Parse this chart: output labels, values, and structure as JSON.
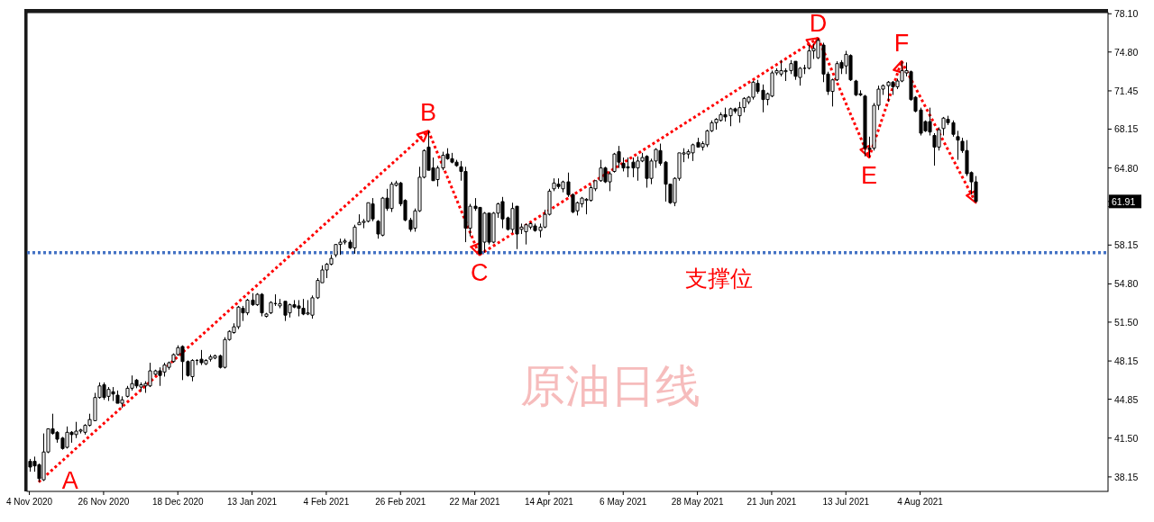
{
  "chart_data": {
    "type": "candlestick",
    "title": "原油日线",
    "categories": [
      "4 Nov 2020",
      null,
      null,
      null,
      null,
      null,
      null,
      null,
      null,
      null,
      null,
      null,
      null,
      null,
      null,
      null,
      "26 Nov 2020",
      null,
      null,
      null,
      null,
      null,
      null,
      null,
      null,
      null,
      null,
      null,
      null,
      null,
      null,
      null,
      "18 Dec 2020",
      null,
      null,
      null,
      null,
      null,
      null,
      null,
      null,
      null,
      null,
      null,
      null,
      null,
      null,
      null,
      "13 Jan 2021",
      null,
      null,
      null,
      null,
      null,
      null,
      null,
      null,
      null,
      null,
      null,
      null,
      null,
      null,
      null,
      "4 Feb 2021",
      null,
      null,
      null,
      null,
      null,
      null,
      null,
      null,
      null,
      null,
      null,
      null,
      null,
      null,
      null,
      "26 Feb 2021",
      null,
      null,
      null,
      null,
      null,
      null,
      null,
      null,
      null,
      null,
      null,
      null,
      null,
      null,
      null,
      "22 Mar 2021",
      null,
      null,
      null,
      null,
      null,
      null,
      null,
      null,
      null,
      null,
      null,
      null,
      null,
      null,
      null,
      "14 Apr 2021",
      null,
      null,
      null,
      null,
      null,
      null,
      null,
      null,
      null,
      null,
      null,
      null,
      null,
      null,
      null,
      "6 May 2021",
      null,
      null,
      null,
      null,
      null,
      null,
      null,
      null,
      null,
      null,
      null,
      null,
      null,
      null,
      null,
      "28 May 2021",
      null,
      null,
      null,
      null,
      null,
      null,
      null,
      null,
      null,
      null,
      null,
      null,
      null,
      null,
      null,
      "21 Jun 2021",
      null,
      null,
      null,
      null,
      null,
      null,
      null,
      null,
      null,
      null,
      null,
      null,
      null,
      null,
      null,
      "13 Jul 2021",
      null,
      null,
      null,
      null,
      null,
      null,
      null,
      null,
      null,
      null,
      null,
      null,
      null,
      null,
      null,
      "4 Aug 2021",
      null,
      null,
      null,
      null,
      null,
      null,
      null,
      null,
      null,
      null,
      null,
      null,
      null,
      null,
      null,
      null,
      null,
      null,
      null,
      null,
      null,
      null,
      null,
      null,
      null,
      null,
      null,
      null,
      null,
      null,
      null,
      null,
      null,
      null,
      null,
      null,
      null,
      null,
      null,
      null
    ],
    "ohlc": [
      [
        39.5,
        39.7,
        38.6,
        39.0
      ],
      [
        39.5,
        39.9,
        38.6,
        39.1
      ],
      [
        39.2,
        39.3,
        37.7,
        38.0
      ],
      [
        37.9,
        41.9,
        37.8,
        40.3
      ],
      [
        40.3,
        42.3,
        40.2,
        42.3
      ],
      [
        42.3,
        43.6,
        41.8,
        41.9
      ],
      [
        42.0,
        42.1,
        41.1,
        41.4
      ],
      [
        41.5,
        41.6,
        40.5,
        40.6
      ],
      [
        40.7,
        42.5,
        40.6,
        42.0
      ],
      [
        42.0,
        42.1,
        41.1,
        41.8
      ],
      [
        41.8,
        42.9,
        41.5,
        42.1
      ],
      [
        42.1,
        42.3,
        41.9,
        42.2
      ],
      [
        42.0,
        42.7,
        41.8,
        42.6
      ],
      [
        42.6,
        43.6,
        42.5,
        43.1
      ],
      [
        43.0,
        45.4,
        43.0,
        45.0
      ],
      [
        45.0,
        46.3,
        44.9,
        46.0
      ],
      [
        46.1,
        46.3,
        44.8,
        45.0
      ],
      [
        45.1,
        45.9,
        44.7,
        45.7
      ],
      [
        45.5,
        45.9,
        44.7,
        45.3
      ],
      [
        45.2,
        45.6,
        44.5,
        44.5
      ],
      [
        44.5,
        45.1,
        44.1,
        44.8
      ],
      [
        45.1,
        46.0,
        45.0,
        45.8
      ],
      [
        45.8,
        46.9,
        45.6,
        46.2
      ],
      [
        46.5,
        46.6,
        45.8,
        46.0
      ],
      [
        45.9,
        46.3,
        45.5,
        46.1
      ],
      [
        46.0,
        46.4,
        45.4,
        46.2
      ],
      [
        46.0,
        48.0,
        45.9,
        47.3
      ],
      [
        47.0,
        47.4,
        46.9,
        47.3
      ],
      [
        47.3,
        47.6,
        46.0,
        46.9
      ],
      [
        47.2,
        48.0,
        46.8,
        47.8
      ],
      [
        47.6,
        48.1,
        47.4,
        48.0
      ],
      [
        48.1,
        48.8,
        48.0,
        48.7
      ],
      [
        48.7,
        49.5,
        48.6,
        49.3
      ],
      [
        49.4,
        49.5,
        46.5,
        48.1
      ],
      [
        48.1,
        48.2,
        46.8,
        46.9
      ],
      [
        46.8,
        48.3,
        46.4,
        48.2
      ],
      [
        48.2,
        48.3,
        47.8,
        48.2
      ],
      [
        48.3,
        49.1,
        47.8,
        48.0
      ],
      [
        47.9,
        48.3,
        47.8,
        48.2
      ],
      [
        48.3,
        48.7,
        48.1,
        48.5
      ],
      [
        48.4,
        48.7,
        48.3,
        48.6
      ],
      [
        48.6,
        48.7,
        47.5,
        47.6
      ],
      [
        47.6,
        50.2,
        47.5,
        50.0
      ],
      [
        50.0,
        50.8,
        49.9,
        50.7
      ],
      [
        50.6,
        51.4,
        50.5,
        51.1
      ],
      [
        51.1,
        52.9,
        50.9,
        52.8
      ],
      [
        52.7,
        52.9,
        51.6,
        52.3
      ],
      [
        52.3,
        53.5,
        52.1,
        53.4
      ],
      [
        53.4,
        54.0,
        52.9,
        53.0
      ],
      [
        53.0,
        54.0,
        52.9,
        53.9
      ],
      [
        53.9,
        54.0,
        52.0,
        52.3
      ],
      [
        52.0,
        52.3,
        51.9,
        52.2
      ],
      [
        52.3,
        53.3,
        52.2,
        53.2
      ],
      [
        53.1,
        53.9,
        52.9,
        53.1
      ],
      [
        52.9,
        53.5,
        52.7,
        53.1
      ],
      [
        53.3,
        53.3,
        51.6,
        52.1
      ],
      [
        52.3,
        53.1,
        51.9,
        53.0
      ],
      [
        53.0,
        53.4,
        52.7,
        52.8
      ],
      [
        52.9,
        53.4,
        52.0,
        52.7
      ],
      [
        52.7,
        53.5,
        52.1,
        52.2
      ],
      [
        52.2,
        53.4,
        52.1,
        52.3
      ],
      [
        52.1,
        53.8,
        51.8,
        53.6
      ],
      [
        53.6,
        55.3,
        53.5,
        55.1
      ],
      [
        54.9,
        56.4,
        54.9,
        56.0
      ],
      [
        56.0,
        56.6,
        55.3,
        56.5
      ],
      [
        56.5,
        57.3,
        56.4,
        57.0
      ],
      [
        57.3,
        58.2,
        57.1,
        58.2
      ],
      [
        58.2,
        58.7,
        57.3,
        58.4
      ],
      [
        58.4,
        58.7,
        58.2,
        58.5
      ],
      [
        58.4,
        58.6,
        57.8,
        57.9
      ],
      [
        57.9,
        59.9,
        57.4,
        59.7
      ],
      [
        59.9,
        60.8,
        59.9,
        60.1
      ],
      [
        60.1,
        60.4,
        59.6,
        60.2
      ],
      [
        60.2,
        61.8,
        60.1,
        61.8
      ],
      [
        61.7,
        62.2,
        60.2,
        60.4
      ],
      [
        60.2,
        60.3,
        58.7,
        59.1
      ],
      [
        59.0,
        62.3,
        58.9,
        62.2
      ],
      [
        62.2,
        63.0,
        61.1,
        61.3
      ],
      [
        61.3,
        63.6,
        61.0,
        63.4
      ],
      [
        63.3,
        63.7,
        63.2,
        63.5
      ],
      [
        63.5,
        63.6,
        61.5,
        61.7
      ],
      [
        62.0,
        62.1,
        60.2,
        60.3
      ],
      [
        60.3,
        60.5,
        59.3,
        59.5
      ],
      [
        59.6,
        61.3,
        59.3,
        61.1
      ],
      [
        61.1,
        64.9,
        61.0,
        64.0
      ],
      [
        64.0,
        66.4,
        63.9,
        66.3
      ],
      [
        66.6,
        68.0,
        64.6,
        64.6
      ],
      [
        64.8,
        65.7,
        63.7,
        63.7
      ],
      [
        63.8,
        65.0,
        63.2,
        64.8
      ],
      [
        64.8,
        66.2,
        64.6,
        65.9
      ],
      [
        66.0,
        66.5,
        65.5,
        65.6
      ],
      [
        65.6,
        66.1,
        65.2,
        65.3
      ],
      [
        65.3,
        65.5,
        64.9,
        65.0
      ],
      [
        64.9,
        65.4,
        63.7,
        64.5
      ],
      [
        64.5,
        64.9,
        58.4,
        59.6
      ],
      [
        59.6,
        61.7,
        58.9,
        61.5
      ],
      [
        61.5,
        62.2,
        61.1,
        61.3
      ],
      [
        61.4,
        61.4,
        57.3,
        57.4
      ],
      [
        58.4,
        61.0,
        57.5,
        60.9
      ],
      [
        60.9,
        60.9,
        58.2,
        58.4
      ],
      [
        58.4,
        61.0,
        58.3,
        60.9
      ],
      [
        60.9,
        61.8,
        60.5,
        61.7
      ],
      [
        61.9,
        62.3,
        59.6,
        60.4
      ],
      [
        60.5,
        60.6,
        59.4,
        59.5
      ],
      [
        59.5,
        61.8,
        59.2,
        61.3
      ],
      [
        61.5,
        61.5,
        57.8,
        59.1
      ],
      [
        59.5,
        60.0,
        59.1,
        59.7
      ],
      [
        59.3,
        60.0,
        58.2,
        59.9
      ],
      [
        59.7,
        60.1,
        59.5,
        60.0
      ],
      [
        59.8,
        60.0,
        59.3,
        59.4
      ],
      [
        59.4,
        60.0,
        58.8,
        59.7
      ],
      [
        59.7,
        61.2,
        59.6,
        60.8
      ],
      [
        60.8,
        63.0,
        60.7,
        62.8
      ],
      [
        63.0,
        63.9,
        62.8,
        63.5
      ],
      [
        63.4,
        63.9,
        63.0,
        63.2
      ],
      [
        63.0,
        63.7,
        62.7,
        63.6
      ],
      [
        63.6,
        64.4,
        62.3,
        62.5
      ],
      [
        62.5,
        62.6,
        60.9,
        61.0
      ],
      [
        61.1,
        61.9,
        60.7,
        61.8
      ],
      [
        61.7,
        62.3,
        61.4,
        62.2
      ],
      [
        62.0,
        62.2,
        60.8,
        62.1
      ],
      [
        62.0,
        63.3,
        61.9,
        63.1
      ],
      [
        63.0,
        63.7,
        62.8,
        63.7
      ],
      [
        63.7,
        65.5,
        63.6,
        64.8
      ],
      [
        64.8,
        64.9,
        63.5,
        63.6
      ],
      [
        63.6,
        64.5,
        62.8,
        64.3
      ],
      [
        64.5,
        66.1,
        64.4,
        66.0
      ],
      [
        66.2,
        66.7,
        64.8,
        65.3
      ],
      [
        65.2,
        65.7,
        64.5,
        64.8
      ],
      [
        64.9,
        65.7,
        64.0,
        64.8
      ],
      [
        65.3,
        65.7,
        64.0,
        64.8
      ],
      [
        64.8,
        65.8,
        63.7,
        65.4
      ],
      [
        65.4,
        66.1,
        65.3,
        65.7
      ],
      [
        65.8,
        65.9,
        63.1,
        63.9
      ],
      [
        63.9,
        65.6,
        63.4,
        65.4
      ],
      [
        65.4,
        66.5,
        64.8,
        66.4
      ],
      [
        66.3,
        66.9,
        65.0,
        65.2
      ],
      [
        65.3,
        65.4,
        61.9,
        63.4
      ],
      [
        63.4,
        63.4,
        61.7,
        61.8
      ],
      [
        61.8,
        64.0,
        61.5,
        63.9
      ],
      [
        63.9,
        66.1,
        63.7,
        66.1
      ],
      [
        66.0,
        66.5,
        65.3,
        66.1
      ],
      [
        66.0,
        66.4,
        65.6,
        66.2
      ],
      [
        66.1,
        66.9,
        65.4,
        66.8
      ],
      [
        67.0,
        67.4,
        66.6,
        66.6
      ],
      [
        66.6,
        67.1,
        66.3,
        66.9
      ],
      [
        66.8,
        68.1,
        66.6,
        68.0
      ],
      [
        68.0,
        68.9,
        67.9,
        68.7
      ],
      [
        68.7,
        69.1,
        68.1,
        69.0
      ],
      [
        68.9,
        69.6,
        68.8,
        69.4
      ],
      [
        69.4,
        70.0,
        68.8,
        69.2
      ],
      [
        69.3,
        70.0,
        68.4,
        69.9
      ],
      [
        69.9,
        70.0,
        69.5,
        69.7
      ],
      [
        69.3,
        70.5,
        68.7,
        70.0
      ],
      [
        70.0,
        70.9,
        69.6,
        70.8
      ],
      [
        70.5,
        71.0,
        70.3,
        70.9
      ],
      [
        70.9,
        72.3,
        70.7,
        72.2
      ],
      [
        72.1,
        72.4,
        71.2,
        71.4
      ],
      [
        71.5,
        72.0,
        69.6,
        70.7
      ],
      [
        70.7,
        71.3,
        70.2,
        71.2
      ],
      [
        71.0,
        73.2,
        70.9,
        73.0
      ],
      [
        73.0,
        73.4,
        72.8,
        73.2
      ],
      [
        72.9,
        74.1,
        72.7,
        73.2
      ],
      [
        73.1,
        73.4,
        72.3,
        73.2
      ],
      [
        73.2,
        74.1,
        72.9,
        73.8
      ],
      [
        74.0,
        74.0,
        72.4,
        72.7
      ],
      [
        72.6,
        73.5,
        71.9,
        73.4
      ],
      [
        73.4,
        73.7,
        72.9,
        73.4
      ],
      [
        73.4,
        75.4,
        73.3,
        74.9
      ],
      [
        74.9,
        75.5,
        74.2,
        75.1
      ],
      [
        74.3,
        76.0,
        74.2,
        75.8
      ],
      [
        75.4,
        75.6,
        72.2,
        72.9
      ],
      [
        72.9,
        73.1,
        71.1,
        71.4
      ],
      [
        71.4,
        72.5,
        70.1,
        72.4
      ],
      [
        72.4,
        74.0,
        72.3,
        73.8
      ],
      [
        73.9,
        74.1,
        72.9,
        73.4
      ],
      [
        73.6,
        74.9,
        72.9,
        74.6
      ],
      [
        74.5,
        74.6,
        72.3,
        72.4
      ],
      [
        72.3,
        72.4,
        71.0,
        71.1
      ],
      [
        71.2,
        71.5,
        71.0,
        71.1
      ],
      [
        71.0,
        71.1,
        65.8,
        66.5
      ],
      [
        66.5,
        67.5,
        65.7,
        66.4
      ],
      [
        66.5,
        70.4,
        66.3,
        70.2
      ],
      [
        70.2,
        71.9,
        69.8,
        71.6
      ],
      [
        71.6,
        72.0,
        71.1,
        71.9
      ],
      [
        71.9,
        72.3,
        70.5,
        72.2
      ],
      [
        72.2,
        72.3,
        71.1,
        71.8
      ],
      [
        71.8,
        72.5,
        71.6,
        72.3
      ],
      [
        72.3,
        74.0,
        72.2,
        73.2
      ],
      [
        73.0,
        73.9,
        72.7,
        73.2
      ],
      [
        73.1,
        73.2,
        70.6,
        70.7
      ],
      [
        70.9,
        71.0,
        69.6,
        69.7
      ],
      [
        69.8,
        70.0,
        67.6,
        67.8
      ],
      [
        68.8,
        68.9,
        67.9,
        68.0
      ],
      [
        68.8,
        70.0,
        67.6,
        67.9
      ],
      [
        67.6,
        67.8,
        65.0,
        66.6
      ],
      [
        66.6,
        68.3,
        66.3,
        68.1
      ],
      [
        68.2,
        69.2,
        67.6,
        69.1
      ],
      [
        69.0,
        69.3,
        68.5,
        68.7
      ],
      [
        68.7,
        68.9,
        67.5,
        67.7
      ],
      [
        67.5,
        68.0,
        65.5,
        67.2
      ],
      [
        67.1,
        67.4,
        66.1,
        66.3
      ],
      [
        66.3,
        67.2,
        64.1,
        64.3
      ],
      [
        64.4,
        64.5,
        62.5,
        63.6
      ],
      [
        63.6,
        64.1,
        61.8,
        61.91
      ],
      null,
      null,
      null,
      null,
      null,
      null,
      null,
      null,
      null,
      null,
      null,
      null,
      null,
      null,
      null,
      null,
      null,
      null,
      null,
      null,
      null,
      null,
      null,
      null,
      null,
      null,
      null,
      null
    ],
    "ylim": [
      36.9,
      78.2
    ],
    "yticks": [
      {
        "value": 78.1,
        "label": "78.10"
      },
      {
        "value": 74.8,
        "label": "74.80"
      },
      {
        "value": 71.45,
        "label": "71.45"
      },
      {
        "value": 68.15,
        "label": "68.15"
      },
      {
        "value": 64.8,
        "label": "64.80"
      },
      {
        "value": 61.91,
        "label": "61.91"
      },
      {
        "value": 61.45,
        "label": null
      },
      {
        "value": 58.15,
        "label": "58.15"
      },
      {
        "value": 54.8,
        "label": "54.80"
      },
      {
        "value": 51.5,
        "label": "51.50"
      },
      {
        "value": 48.15,
        "label": "48.15"
      },
      {
        "value": 44.85,
        "label": "44.85"
      },
      {
        "value": 41.5,
        "label": "41.50"
      },
      {
        "value": 38.15,
        "label": "38.15"
      }
    ],
    "ref_lines": [
      {
        "axis": "y",
        "value": 57.5,
        "label": "支撑位",
        "color": "#4472c4",
        "line_style": "dotted"
      }
    ],
    "annotations": [
      "A",
      {
        "text": "B",
        "y": 68.0
      },
      {
        "text": "C",
        "y": 57.3
      },
      {
        "text": "D",
        "y": 76.0
      },
      {
        "text": "E",
        "y": 65.7
      },
      {
        "text": "F",
        "y": 74.0
      }
    ]
  }
}
